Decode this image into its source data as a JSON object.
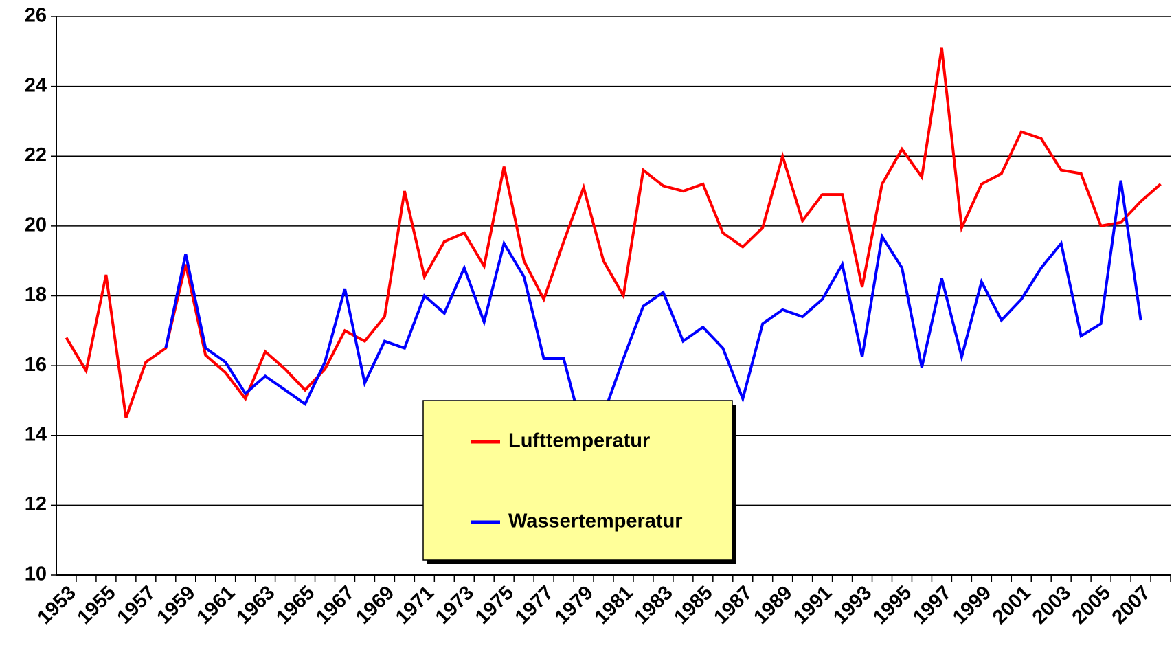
{
  "chart_data": {
    "type": "line",
    "categories": [
      "1953",
      null,
      "1955",
      null,
      "1957",
      null,
      "1959",
      null,
      "1961",
      null,
      "1963",
      null,
      "1965",
      null,
      "1967",
      null,
      "1969",
      null,
      "1971",
      null,
      "1973",
      null,
      "1975",
      null,
      "1977",
      null,
      "1979",
      null,
      "1981",
      null,
      "1983",
      null,
      "1985",
      null,
      "1987",
      null,
      "1989",
      null,
      "1991",
      null,
      "1993",
      null,
      "1995",
      null,
      "1997",
      null,
      "1999",
      null,
      "2001",
      null,
      "2003",
      null,
      "2005",
      null,
      "2007",
      null
    ],
    "series": [
      {
        "name": "Lufttemperatur",
        "color": "#ff0000",
        "values": [
          16.8,
          15.85,
          18.6,
          14.5,
          16.1,
          16.5,
          18.9,
          16.3,
          15.8,
          15.05,
          16.4,
          15.9,
          15.3,
          15.9,
          17.0,
          16.7,
          17.4,
          21.0,
          18.55,
          19.55,
          19.8,
          18.85,
          21.7,
          19.0,
          17.9,
          19.55,
          21.1,
          19.0,
          18.0,
          21.6,
          21.15,
          21.0,
          21.2,
          19.8,
          19.4,
          19.95,
          22.0,
          20.15,
          20.9,
          20.9,
          18.25,
          21.2,
          22.2,
          21.4,
          25.1,
          19.95,
          21.2,
          21.5,
          22.7,
          22.5,
          21.6,
          21.5,
          20.0,
          20.1,
          20.7,
          21.2
        ]
      },
      {
        "name": "Wassertemperatur",
        "color": "#0000ff",
        "values": [
          null,
          null,
          null,
          null,
          null,
          16.5,
          19.2,
          16.5,
          16.1,
          15.2,
          15.7,
          15.3,
          14.9,
          16.1,
          18.2,
          15.5,
          16.7,
          16.5,
          18.0,
          17.5,
          18.8,
          17.25,
          19.5,
          18.55,
          16.2,
          16.2,
          14.0,
          14.6,
          16.2,
          17.7,
          18.1,
          16.7,
          17.1,
          16.5,
          15.05,
          17.2,
          17.6,
          17.4,
          17.9,
          18.9,
          16.25,
          19.7,
          18.8,
          15.95,
          18.5,
          16.25,
          18.4,
          17.3,
          17.9,
          18.8,
          19.5,
          16.85,
          17.2,
          21.3,
          17.3,
          null
        ]
      }
    ],
    "ylim": [
      10,
      26
    ],
    "yticks": [
      10,
      12,
      14,
      16,
      18,
      20,
      22,
      24,
      26
    ],
    "grid": true,
    "legend_color": "#ffff99"
  }
}
